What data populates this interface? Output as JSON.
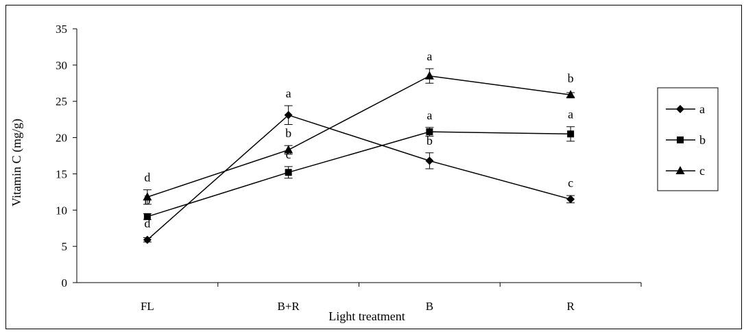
{
  "chart_data": {
    "type": "line",
    "categories": [
      "FL",
      "B+R",
      "B",
      "R"
    ],
    "xlabel": "Light treatment",
    "ylabel": "Vitamin C (mg/g)",
    "ylim": [
      0,
      35
    ],
    "yticks": [
      0,
      5,
      10,
      15,
      20,
      25,
      30,
      35
    ],
    "grid": false,
    "legend_position": "right",
    "series": [
      {
        "name": "a",
        "marker": "diamond",
        "values": [
          5.9,
          23.1,
          16.8,
          11.5
        ],
        "errors": [
          0.3,
          1.3,
          1.1,
          0.5
        ],
        "letters": [
          "d",
          "a",
          "b",
          "c"
        ]
      },
      {
        "name": "b",
        "marker": "square",
        "values": [
          9.1,
          15.2,
          20.8,
          20.5
        ],
        "errors": [
          0.4,
          0.8,
          0.6,
          1.0
        ],
        "letters": [
          "b",
          "c",
          "a",
          "a"
        ]
      },
      {
        "name": "c",
        "marker": "triangle",
        "values": [
          11.8,
          18.3,
          28.5,
          25.9
        ],
        "errors": [
          1.0,
          0.6,
          1.0,
          0.3
        ],
        "letters": [
          "d",
          "b",
          "a",
          "b"
        ]
      }
    ]
  }
}
